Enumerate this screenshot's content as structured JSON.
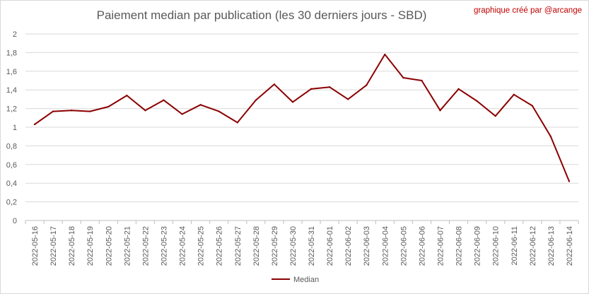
{
  "title": "Paiement median par publication (les 30 derniers jours - SBD)",
  "credit": "graphique créé par @arcange",
  "colors": {
    "line": "#8B0000",
    "grid": "#d9d9d9",
    "text": "#595959",
    "credit": "#c00000"
  },
  "chart_data": {
    "type": "line",
    "title": "Paiement median par publication (les 30 derniers jours - SBD)",
    "xlabel": "",
    "ylabel": "",
    "ylim": [
      0,
      2
    ],
    "yticks": [
      0,
      0.2,
      0.4,
      0.6,
      0.8,
      1,
      1.2,
      1.4,
      1.6,
      1.8,
      2
    ],
    "ytick_labels": [
      "0",
      "0,2",
      "0,4",
      "0,6",
      "0,8",
      "1",
      "1,2",
      "1,4",
      "1,6",
      "1,8",
      "2"
    ],
    "grid": true,
    "legend": "bottom",
    "categories": [
      "2022-05-16",
      "2022-05-17",
      "2022-05-18",
      "2022-05-19",
      "2022-05-20",
      "2022-05-21",
      "2022-05-22",
      "2022-05-23",
      "2022-05-24",
      "2022-05-25",
      "2022-05-26",
      "2022-05-27",
      "2022-05-28",
      "2022-05-29",
      "2022-05-30",
      "2022-05-31",
      "2022-06-01",
      "2022-06-02",
      "2022-06-03",
      "2022-06-04",
      "2022-06-05",
      "2022-06-06",
      "2022-06-07",
      "2022-06-08",
      "2022-06-09",
      "2022-06-10",
      "2022-06-11",
      "2022-06-12",
      "2022-06-13",
      "2022-06-14"
    ],
    "series": [
      {
        "name": "Median",
        "values": [
          1.03,
          1.17,
          1.18,
          1.17,
          1.22,
          1.34,
          1.18,
          1.29,
          1.14,
          1.24,
          1.17,
          1.05,
          1.29,
          1.46,
          1.27,
          1.41,
          1.43,
          1.3,
          1.45,
          1.78,
          1.53,
          1.5,
          1.18,
          1.41,
          1.28,
          1.12,
          1.35,
          1.23,
          0.9,
          0.42
        ]
      }
    ]
  }
}
